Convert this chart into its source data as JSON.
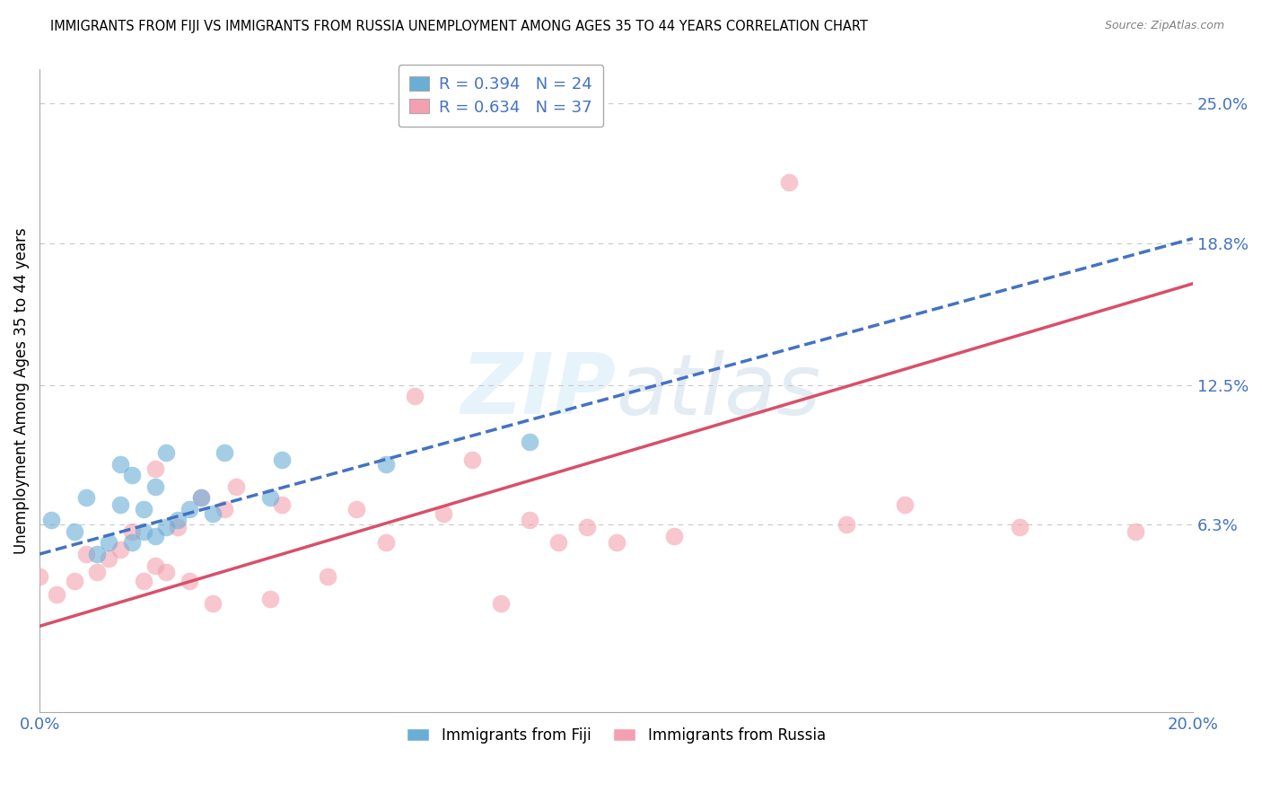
{
  "title": "IMMIGRANTS FROM FIJI VS IMMIGRANTS FROM RUSSIA UNEMPLOYMENT AMONG AGES 35 TO 44 YEARS CORRELATION CHART",
  "source": "Source: ZipAtlas.com",
  "ylabel": "Unemployment Among Ages 35 to 44 years",
  "xlim": [
    0.0,
    0.2
  ],
  "ylim": [
    -0.02,
    0.265
  ],
  "yticks": [
    0.063,
    0.125,
    0.188,
    0.25
  ],
  "ytick_labels": [
    "6.3%",
    "12.5%",
    "18.8%",
    "25.0%"
  ],
  "xticks": [
    0.0,
    0.05,
    0.1,
    0.15,
    0.2
  ],
  "xtick_labels": [
    "0.0%",
    "",
    "",
    "",
    "20.0%"
  ],
  "fiji_R": 0.394,
  "fiji_N": 24,
  "russia_R": 0.634,
  "russia_N": 37,
  "fiji_color": "#6aaed6",
  "russia_color": "#f4a0b0",
  "fiji_line_color": "#4472c4",
  "russia_line_color": "#d94f6a",
  "background_color": "#ffffff",
  "grid_color": "#c8c8c8",
  "fiji_x": [
    0.002,
    0.006,
    0.008,
    0.01,
    0.012,
    0.014,
    0.014,
    0.016,
    0.016,
    0.018,
    0.018,
    0.02,
    0.02,
    0.022,
    0.022,
    0.024,
    0.026,
    0.028,
    0.03,
    0.032,
    0.04,
    0.042,
    0.06,
    0.085
  ],
  "fiji_y": [
    0.065,
    0.06,
    0.075,
    0.05,
    0.055,
    0.072,
    0.09,
    0.055,
    0.085,
    0.06,
    0.07,
    0.058,
    0.08,
    0.062,
    0.095,
    0.065,
    0.07,
    0.075,
    0.068,
    0.095,
    0.075,
    0.092,
    0.09,
    0.1
  ],
  "russia_x": [
    0.0,
    0.003,
    0.006,
    0.008,
    0.01,
    0.012,
    0.014,
    0.016,
    0.018,
    0.02,
    0.02,
    0.022,
    0.024,
    0.026,
    0.028,
    0.03,
    0.032,
    0.034,
    0.04,
    0.042,
    0.05,
    0.055,
    0.06,
    0.065,
    0.07,
    0.075,
    0.08,
    0.085,
    0.09,
    0.095,
    0.1,
    0.11,
    0.13,
    0.14,
    0.15,
    0.17,
    0.19
  ],
  "russia_y": [
    0.04,
    0.032,
    0.038,
    0.05,
    0.042,
    0.048,
    0.052,
    0.06,
    0.038,
    0.045,
    0.088,
    0.042,
    0.062,
    0.038,
    0.075,
    0.028,
    0.07,
    0.08,
    0.03,
    0.072,
    0.04,
    0.07,
    0.055,
    0.12,
    0.068,
    0.092,
    0.028,
    0.065,
    0.055,
    0.062,
    0.055,
    0.058,
    0.215,
    0.063,
    0.072,
    0.062,
    0.06
  ],
  "fiji_line_x0": 0.0,
  "fiji_line_x1": 0.2,
  "fiji_line_y0": 0.05,
  "fiji_line_y1": 0.19,
  "russia_line_x0": 0.0,
  "russia_line_x1": 0.2,
  "russia_line_y0": 0.018,
  "russia_line_y1": 0.17
}
